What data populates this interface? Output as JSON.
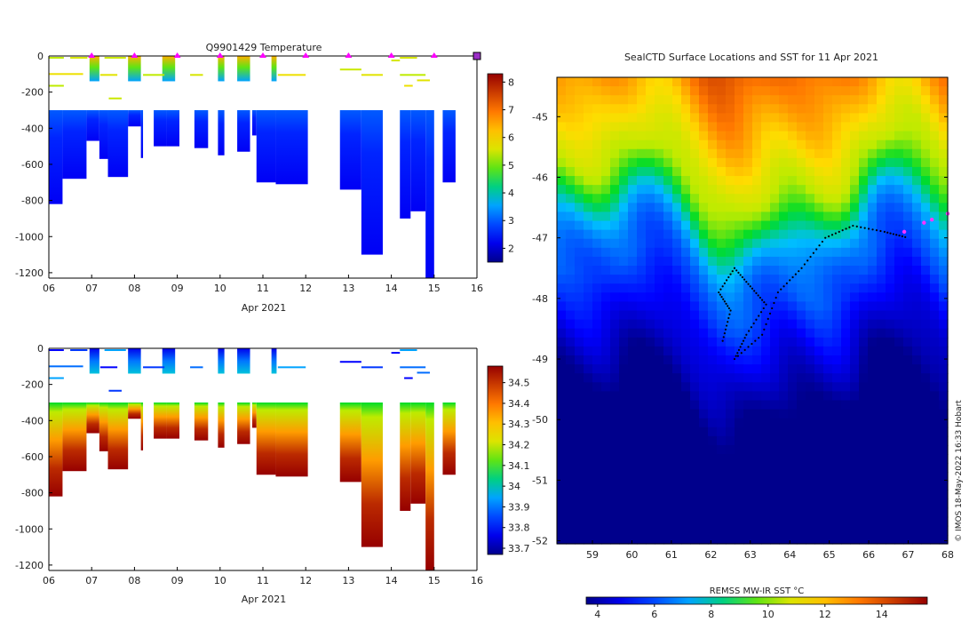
{
  "chart_data": [
    {
      "type": "heatmap",
      "title": "Q9901429  Temperature",
      "xlabel": "Apr 2021",
      "ylabel": "",
      "x_ticks": [
        "06",
        "07",
        "08",
        "09",
        "10",
        "11",
        "12",
        "13",
        "14",
        "15",
        "16"
      ],
      "x_range": [
        6,
        16
      ],
      "y_ticks": [
        "0",
        "-200",
        "-400",
        "-600",
        "-800",
        "-1000",
        "-1200"
      ],
      "y_range": [
        -1230,
        0
      ],
      "colorbar_ticks": [
        "2",
        "3",
        "4",
        "5",
        "6",
        "7",
        "8"
      ],
      "colorbar_range": [
        1.5,
        8.3
      ],
      "colormap": "jet",
      "profile_markers_day": [
        7.0,
        8.0,
        9.0,
        10.0,
        11.0,
        12.0,
        13.0,
        14.0,
        15.0,
        16.0
      ],
      "profiles": [
        {
          "t0": 6.0,
          "t1": 6.32,
          "bottom": -820
        },
        {
          "t0": 6.32,
          "t1": 6.88,
          "bottom": -680
        },
        {
          "t0": 6.88,
          "t1": 7.18,
          "bottom": -470
        },
        {
          "t0": 7.18,
          "t1": 7.38,
          "bottom": -570
        },
        {
          "t0": 7.38,
          "t1": 7.85,
          "bottom": -670
        },
        {
          "t0": 7.85,
          "t1": 8.15,
          "bottom": -390
        },
        {
          "t0": 8.15,
          "t1": 8.2,
          "bottom": -565
        },
        {
          "t0": 8.45,
          "t1": 8.75,
          "bottom": -500
        },
        {
          "t0": 8.75,
          "t1": 9.05,
          "bottom": -500
        },
        {
          "t0": 9.4,
          "t1": 9.72,
          "bottom": -510
        },
        {
          "t0": 9.95,
          "t1": 10.1,
          "bottom": -550
        },
        {
          "t0": 10.4,
          "t1": 10.7,
          "bottom": -530
        },
        {
          "t0": 10.75,
          "t1": 10.85,
          "bottom": -440
        },
        {
          "t0": 10.85,
          "t1": 11.3,
          "bottom": -700
        },
        {
          "t0": 11.3,
          "t1": 12.05,
          "bottom": -710
        },
        {
          "t0": 12.8,
          "t1": 13.3,
          "bottom": -740
        },
        {
          "t0": 13.3,
          "t1": 13.8,
          "bottom": -1100
        },
        {
          "t0": 14.2,
          "t1": 14.45,
          "bottom": -900
        },
        {
          "t0": 14.45,
          "t1": 14.8,
          "bottom": -860
        },
        {
          "t0": 14.8,
          "t1": 15.0,
          "bottom": -1230
        },
        {
          "t0": 15.2,
          "t1": 15.5,
          "bottom": -700
        }
      ]
    },
    {
      "type": "heatmap",
      "title": "",
      "xlabel": "Apr 2021",
      "ylabel": "",
      "x_ticks": [
        "06",
        "07",
        "08",
        "09",
        "10",
        "11",
        "12",
        "13",
        "14",
        "15",
        "16"
      ],
      "x_range": [
        6,
        16
      ],
      "y_ticks": [
        "0",
        "-200",
        "-400",
        "-600",
        "-800",
        "-1000",
        "-1200"
      ],
      "y_range": [
        -1230,
        0
      ],
      "colorbar_ticks": [
        "33.7",
        "33.8",
        "33.9",
        "34",
        "34.1",
        "34.2",
        "34.3",
        "34.4",
        "34.5"
      ],
      "colorbar_range": [
        33.67,
        34.58
      ],
      "colormap": "jet"
    },
    {
      "type": "heatmap",
      "title": "SealCTD Surface Locations and SST for 11 Apr 2021",
      "xlabel": "",
      "ylabel": "",
      "x_ticks": [
        "59",
        "60",
        "61",
        "62",
        "63",
        "64",
        "65",
        "66",
        "67",
        "68"
      ],
      "x_range": [
        58.1,
        68.0
      ],
      "y_ticks": [
        "-45",
        "-46",
        "-47",
        "-48",
        "-49",
        "-50",
        "-51",
        "-52"
      ],
      "y_range": [
        -52.05,
        -44.35
      ],
      "colorbar_label": "REMSS MW-IR SST °C",
      "colorbar_ticks": [
        "4",
        "6",
        "8",
        "10",
        "12",
        "14"
      ],
      "colorbar_range": [
        3.6,
        15.6
      ],
      "colormap": "jet",
      "track_points": [
        [
          62.3,
          -48.7
        ],
        [
          62.5,
          -48.2
        ],
        [
          62.2,
          -47.9
        ],
        [
          62.6,
          -47.5
        ],
        [
          63.0,
          -47.8
        ],
        [
          63.4,
          -48.1
        ],
        [
          62.9,
          -48.6
        ],
        [
          62.6,
          -49.0
        ],
        [
          63.3,
          -48.6
        ],
        [
          63.7,
          -47.9
        ],
        [
          64.3,
          -47.5
        ],
        [
          64.9,
          -47.0
        ],
        [
          65.6,
          -46.8
        ],
        [
          66.4,
          -46.9
        ],
        [
          67.0,
          -47.0
        ]
      ],
      "recent_points": [
        [
          67.4,
          -46.75
        ],
        [
          66.9,
          -46.9
        ],
        [
          67.6,
          -46.7
        ],
        [
          68.0,
          -46.6
        ]
      ]
    }
  ],
  "footer": "©  IMOS 18-May-2022 16:33 Hobart"
}
